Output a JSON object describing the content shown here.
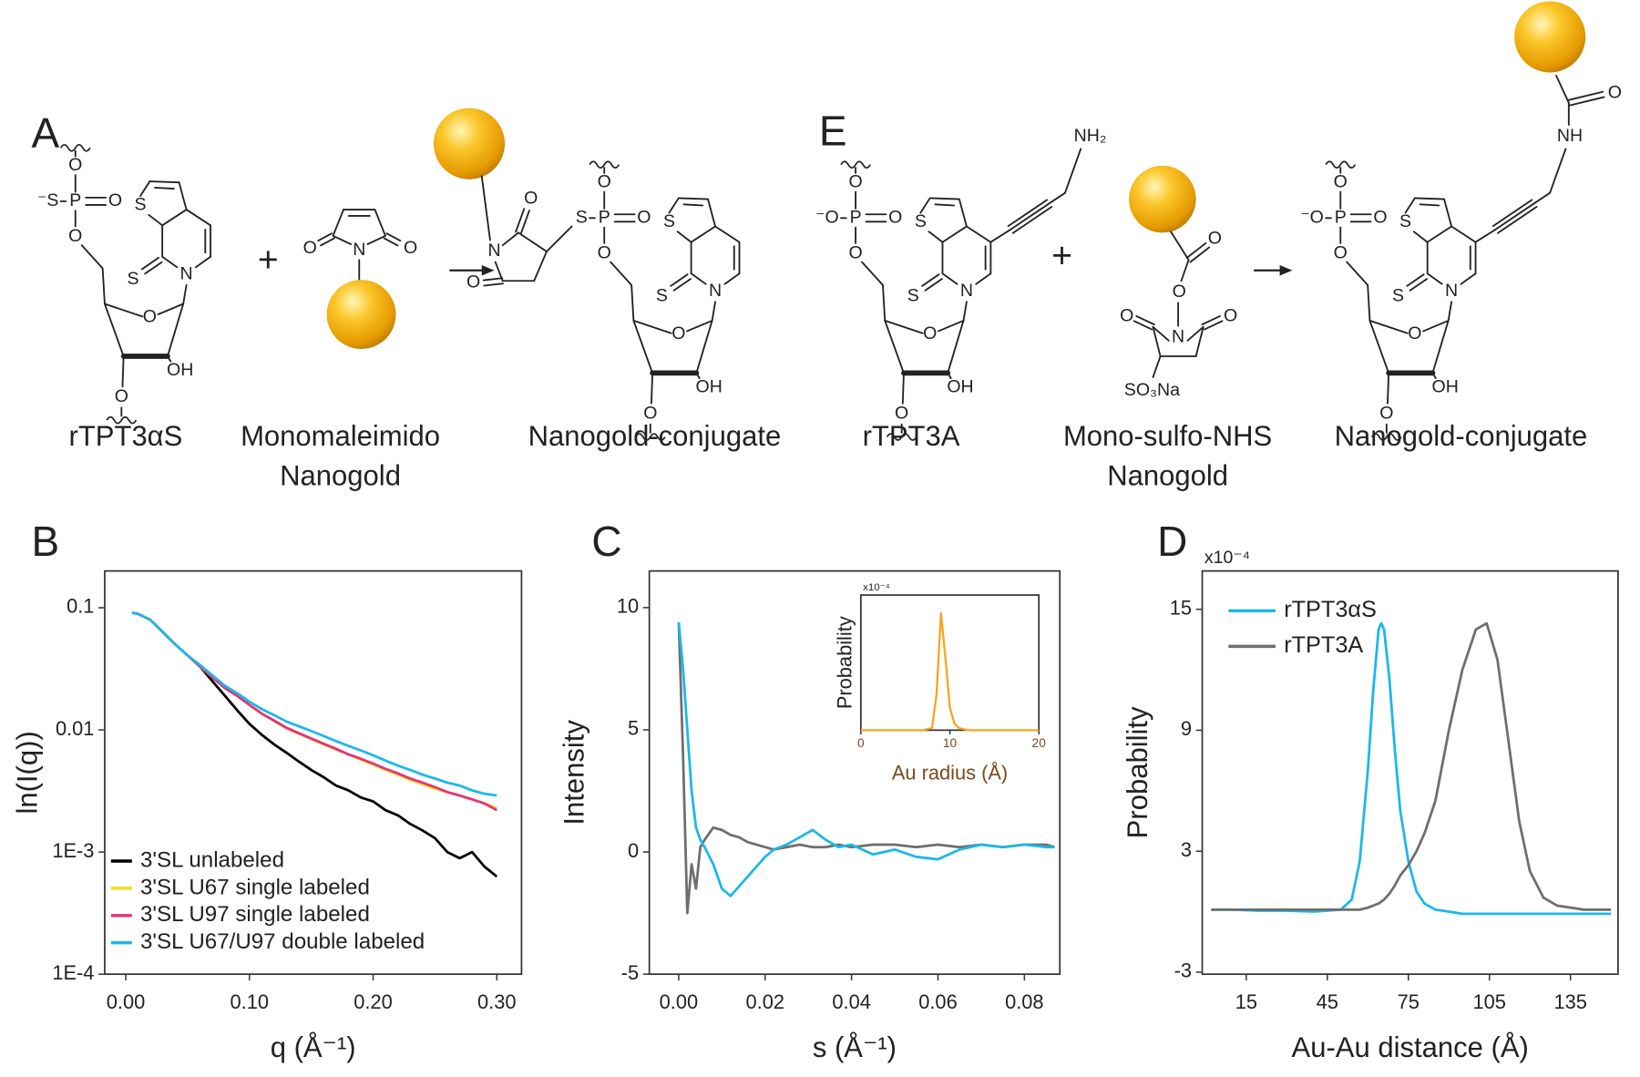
{
  "scheme": {
    "panel_labels": [
      "A",
      "E"
    ],
    "plus": [
      "+",
      "+"
    ],
    "compounds": [
      {
        "label": [
          "rTPT3αS"
        ]
      },
      {
        "label": [
          "Monomaleimido",
          "Nanogold"
        ]
      },
      {
        "label": [
          "Nanogold-conjugate"
        ]
      },
      {
        "label": [
          "rTPT3A"
        ]
      },
      {
        "label": [
          "Mono-sulfo-NHS",
          "Nanogold"
        ]
      },
      {
        "label": [
          "Nanogold-conjugate"
        ]
      }
    ],
    "structures": [
      {
        "atoms": [
          "⁻S",
          "O",
          "P",
          "O",
          "O",
          "O",
          "OH",
          "O",
          "S",
          "S",
          "N"
        ]
      },
      {
        "atoms": [
          "O",
          "N",
          "O"
        ]
      },
      {
        "atoms": [
          "O",
          "N",
          "O"
        ]
      },
      {
        "atoms": [
          "S",
          "O",
          "P",
          "O",
          "O",
          "O",
          "OH",
          "O",
          "S",
          "S",
          "N"
        ]
      },
      {
        "atoms": [
          "⁻O",
          "O",
          "P",
          "O",
          "O",
          "O",
          "OH",
          "O",
          "S",
          "S",
          "N",
          "NH₂"
        ]
      },
      {
        "atoms": [
          "O",
          "O",
          "N",
          "O",
          "O",
          "SO₃Na"
        ]
      },
      {
        "atoms": [
          "⁻O",
          "O",
          "P",
          "O",
          "O",
          "O",
          "OH",
          "O",
          "S",
          "S",
          "N",
          "NH",
          "O"
        ]
      }
    ]
  },
  "chart_data": [
    {
      "type": "line",
      "panel": "B",
      "ylabel": "ln(I(q))",
      "xlabel": "q (Å⁻¹)",
      "y_scale": "log",
      "xlim": [
        -0.017,
        0.32
      ],
      "ylim": [
        0.0001,
        0.2
      ],
      "xticks": [
        {
          "value": 0,
          "label": "0.00"
        },
        {
          "value": 0.1,
          "label": "0.10"
        },
        {
          "value": 0.2,
          "label": "0.20"
        },
        {
          "value": 0.3,
          "label": "0.30"
        }
      ],
      "yticks": [
        {
          "value": 0.0001,
          "label": "1E-4"
        },
        {
          "value": 0.001,
          "label": "1E-3"
        },
        0.01,
        0.1
      ],
      "legend": "lower left",
      "x": [
        0.005,
        0.01,
        0.02,
        0.03,
        0.04,
        0.05,
        0.06,
        0.07,
        0.08,
        0.09,
        0.1,
        0.11,
        0.12,
        0.13,
        0.14,
        0.15,
        0.16,
        0.17,
        0.18,
        0.19,
        0.2,
        0.21,
        0.22,
        0.23,
        0.24,
        0.25,
        0.26,
        0.27,
        0.28,
        0.29,
        0.3
      ],
      "series": [
        {
          "name": "3'SL unlabeled",
          "color": "#000000",
          "values": [
            0.0912,
            0.0891,
            0.0794,
            0.0631,
            0.0501,
            0.0407,
            0.0331,
            0.0251,
            0.0191,
            0.0145,
            0.0112,
            0.0091,
            0.0076,
            0.0065,
            0.0055,
            0.0047,
            0.0041,
            0.0035,
            0.0032,
            0.0028,
            0.0026,
            0.0022,
            0.002,
            0.0017,
            0.0015,
            0.0013,
            0.001,
            0.00089,
            0.001,
            0.00076,
            0.00063
          ]
        },
        {
          "name": "3'SL U67 single labeled",
          "color": "#f2dc1c",
          "values": [
            0.0912,
            0.0891,
            0.0794,
            0.0631,
            0.0501,
            0.0407,
            0.033,
            0.027,
            0.022,
            0.019,
            0.016,
            0.0135,
            0.0118,
            0.0103,
            0.0093,
            0.0084,
            0.0076,
            0.0069,
            0.0063,
            0.0057,
            0.0052,
            0.0047,
            0.0043,
            0.0039,
            0.0036,
            0.0033,
            0.0031,
            0.0029,
            0.0027,
            0.0025,
            0.0023
          ]
        },
        {
          "name": "3'SL U97 single labeled",
          "color": "#e8307a",
          "values": [
            0.0912,
            0.0891,
            0.0794,
            0.0631,
            0.0501,
            0.0407,
            0.033,
            0.027,
            0.022,
            0.019,
            0.016,
            0.0136,
            0.0119,
            0.0104,
            0.0094,
            0.0085,
            0.0077,
            0.007,
            0.0063,
            0.0058,
            0.0053,
            0.0048,
            0.0044,
            0.004,
            0.0037,
            0.0034,
            0.0031,
            0.0029,
            0.0027,
            0.0025,
            0.0022
          ]
        },
        {
          "name": "3'SL U67/U97 double labeled",
          "color": "#1ab8e8",
          "values": [
            0.0912,
            0.0891,
            0.0794,
            0.0631,
            0.0501,
            0.0407,
            0.034,
            0.028,
            0.023,
            0.02,
            0.017,
            0.0148,
            0.0132,
            0.0117,
            0.0107,
            0.0098,
            0.0089,
            0.0081,
            0.0074,
            0.0068,
            0.0062,
            0.0056,
            0.0051,
            0.0047,
            0.0043,
            0.004,
            0.0037,
            0.0035,
            0.0032,
            0.003,
            0.0029
          ]
        }
      ]
    },
    {
      "type": "line",
      "panel": "C",
      "ylabel": "Intensity",
      "xlabel": "s (Å⁻¹)",
      "xlim": [
        -0.0068,
        0.0882
      ],
      "ylim": [
        -5,
        11.5
      ],
      "xticks": [
        {
          "value": 0,
          "label": "0.00"
        },
        {
          "value": 0.02,
          "label": "0.02"
        },
        {
          "value": 0.04,
          "label": "0.04"
        },
        {
          "value": 0.06,
          "label": "0.06"
        },
        {
          "value": 0.08,
          "label": "0.08"
        }
      ],
      "yticks": [
        -5,
        0,
        5,
        10
      ],
      "x": [
        0,
        0.001,
        0.002,
        0.003,
        0.004,
        0.005,
        0.006,
        0.008,
        0.01,
        0.012,
        0.014,
        0.016,
        0.018,
        0.02,
        0.022,
        0.025,
        0.028,
        0.031,
        0.034,
        0.037,
        0.04,
        0.045,
        0.05,
        0.055,
        0.06,
        0.065,
        0.07,
        0.075,
        0.08,
        0.085,
        0.087
      ],
      "series": [
        {
          "color": "#6e6e6e",
          "values": [
            9.4,
            4.0,
            -2.5,
            -0.5,
            -1.5,
            0.2,
            0.5,
            1.0,
            0.9,
            0.7,
            0.6,
            0.4,
            0.3,
            0.2,
            0.1,
            0.2,
            0.3,
            0.2,
            0.2,
            0.3,
            0.2,
            0.3,
            0.3,
            0.2,
            0.3,
            0.2,
            0.3,
            0.2,
            0.3,
            0.3,
            0.2
          ]
        },
        {
          "color": "#1ab8e8",
          "values": [
            9.4,
            7.5,
            5.0,
            2.5,
            1.0,
            0.5,
            0.2,
            -0.5,
            -1.5,
            -1.8,
            -1.4,
            -1.0,
            -0.6,
            -0.2,
            0.1,
            0.3,
            0.6,
            0.9,
            0.5,
            0.2,
            0.3,
            -0.1,
            0.1,
            -0.2,
            -0.3,
            0.1,
            0.3,
            0.2,
            0.3,
            0.2,
            0.2
          ]
        }
      ]
    },
    {
      "type": "line",
      "xlabel": "Au radius (Å)",
      "ylabel": "Probability",
      "y_multiplier": "x10⁻⁴",
      "xlim": [
        0,
        20
      ],
      "ylim": [
        0,
        3
      ],
      "xticks": [
        0,
        10,
        20
      ],
      "x": [
        0,
        7,
        8,
        8.5,
        9,
        9.5,
        10,
        10.5,
        11,
        12,
        20
      ],
      "series": [
        {
          "color": "#f5a623",
          "values": [
            0,
            0,
            0.05,
            0.8,
            2.6,
            1.6,
            0.5,
            0.15,
            0.05,
            0,
            0
          ]
        }
      ]
    },
    {
      "type": "line",
      "panel": "D",
      "ylabel": "Probability",
      "xlabel": "Au-Au distance (Å)",
      "y_multiplier": "x10⁻⁴",
      "xlim": [
        -1.3,
        152.6
      ],
      "ylim": [
        -3.1,
        16.9
      ],
      "xticks": [
        15,
        45,
        75,
        105,
        135
      ],
      "yticks": [
        -3,
        3,
        9,
        15
      ],
      "legend": "upper left",
      "x": [
        2,
        10,
        20,
        30,
        40,
        50,
        54,
        57,
        60,
        62,
        64,
        65,
        66,
        68,
        70,
        72,
        75,
        78,
        81,
        85,
        90,
        95,
        100,
        104,
        108,
        112,
        116,
        120,
        125,
        130,
        140,
        150
      ],
      "series": [
        {
          "name": "rTPT3αS",
          "color": "#1ab8e8",
          "values": [
            0.1,
            0.1,
            0.05,
            0.05,
            0,
            0.1,
            0.6,
            2.5,
            7,
            11,
            14,
            14.3,
            14,
            11.5,
            8,
            5,
            2.5,
            1,
            0.4,
            0.1,
            0,
            -0.1,
            -0.1,
            -0.1,
            -0.1,
            -0.1,
            -0.1,
            -0.1,
            -0.1,
            -0.1,
            -0.1,
            -0.1
          ]
        },
        {
          "name": "rTPT3A",
          "color": "#6e6e6e",
          "values": [
            0.1,
            0.1,
            0.1,
            0.1,
            0.1,
            0.1,
            0.1,
            0.1,
            0.2,
            0.3,
            0.4,
            0.5,
            0.6,
            0.9,
            1.3,
            1.8,
            2.3,
            3.0,
            3.9,
            5.5,
            9,
            12,
            14,
            14.3,
            12.5,
            8.5,
            4.5,
            2,
            0.7,
            0.3,
            0.1,
            0.1
          ]
        }
      ]
    }
  ]
}
